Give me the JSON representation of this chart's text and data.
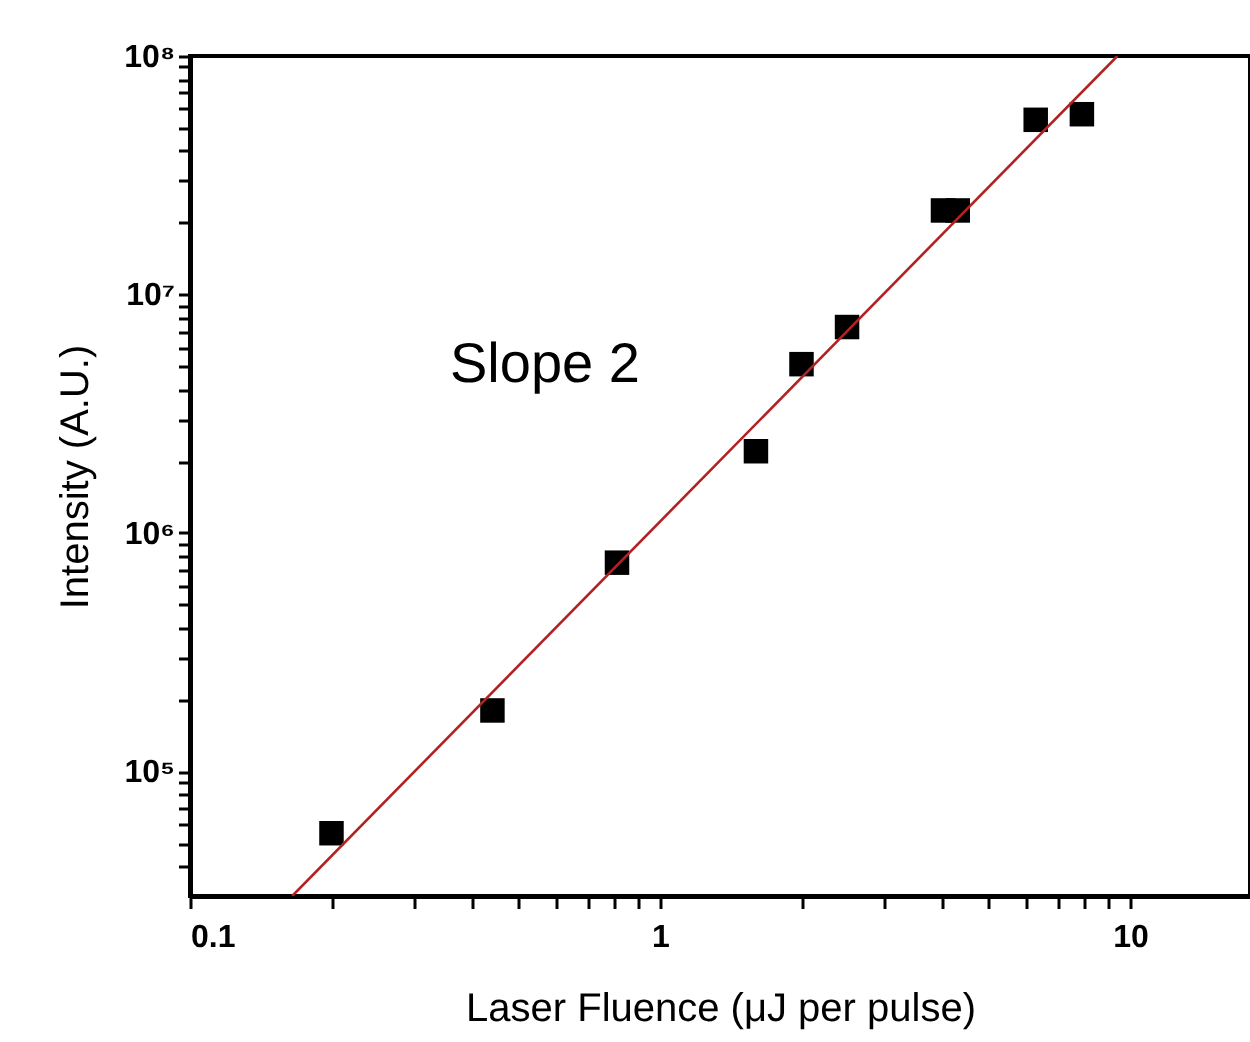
{
  "chart_data": {
    "type": "scatter",
    "xlabel": "Laser Fluence (μJ per pulse)",
    "ylabel": "Intensity (A.U.)",
    "log": "xy",
    "marker": "square",
    "annotations": [
      "Slope 2"
    ],
    "xlim": [
      0.1,
      18
    ],
    "ylim": [
      30000,
      100000000
    ],
    "xticks": [
      0.1,
      {
        "value": 0.2,
        "label": null
      },
      {
        "value": 0.3,
        "label": null
      },
      {
        "value": 0.4,
        "label": null
      },
      {
        "value": 0.5,
        "label": null
      },
      {
        "value": 0.6,
        "label": null
      },
      {
        "value": 0.7,
        "label": null
      },
      {
        "value": 0.8,
        "label": null
      },
      {
        "value": 0.9,
        "label": null
      },
      1,
      {
        "value": 2,
        "label": null
      },
      {
        "value": 3,
        "label": null
      },
      {
        "value": 4,
        "label": null
      },
      {
        "value": 5,
        "label": null
      },
      {
        "value": 6,
        "label": null
      },
      {
        "value": 7,
        "label": null
      },
      {
        "value": 8,
        "label": null
      },
      {
        "value": 9,
        "label": null
      },
      10
    ],
    "yticks": [
      {
        "value": 40000,
        "label": null
      },
      {
        "value": 50000,
        "label": null
      },
      {
        "value": 60000,
        "label": null
      },
      {
        "value": 70000,
        "label": null
      },
      {
        "value": 80000,
        "label": null
      },
      {
        "value": 90000,
        "label": null
      },
      {
        "value": 100000,
        "label": "10⁵"
      },
      {
        "value": 200000,
        "label": null
      },
      {
        "value": 300000,
        "label": null
      },
      {
        "value": 400000,
        "label": null
      },
      {
        "value": 500000,
        "label": null
      },
      {
        "value": 600000,
        "label": null
      },
      {
        "value": 700000,
        "label": null
      },
      {
        "value": 800000,
        "label": null
      },
      {
        "value": 900000,
        "label": null
      },
      {
        "value": 1000000,
        "label": "10⁶"
      },
      {
        "value": 2000000,
        "label": null
      },
      {
        "value": 3000000,
        "label": null
      },
      {
        "value": 4000000,
        "label": null
      },
      {
        "value": 5000000,
        "label": null
      },
      {
        "value": 6000000,
        "label": null
      },
      {
        "value": 7000000,
        "label": null
      },
      {
        "value": 8000000,
        "label": null
      },
      {
        "value": 9000000,
        "label": null
      },
      {
        "value": 10000000,
        "label": "10⁷"
      },
      {
        "value": 20000000,
        "label": null
      },
      {
        "value": 30000000,
        "label": null
      },
      {
        "value": 40000000,
        "label": null
      },
      {
        "value": 50000000,
        "label": null
      },
      {
        "value": 60000000,
        "label": null
      },
      {
        "value": 70000000,
        "label": null
      },
      {
        "value": 80000000,
        "label": null
      },
      {
        "value": 90000000,
        "label": null
      },
      {
        "value": 100000000,
        "label": "10⁸"
      }
    ],
    "series": [
      {
        "color": "#000000",
        "x": [
          0.2,
          0.44,
          0.81,
          1.6,
          2.0,
          2.5,
          4.0,
          4.3,
          6.3,
          7.9
        ],
        "values": [
          55000,
          180000,
          750000,
          2200000,
          5100000,
          7300000,
          22500000,
          22500000,
          54000000,
          57000000
        ]
      },
      {
        "type": "line",
        "color": "#b22222",
        "marker": "none",
        "x": [
          0.165,
          9.4
        ],
        "values": [
          30000,
          100000000
        ]
      }
    ]
  }
}
